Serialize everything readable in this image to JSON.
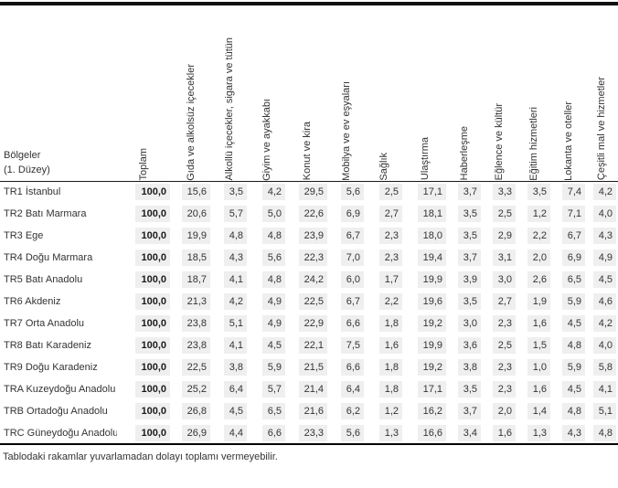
{
  "table": {
    "region_header": {
      "line1": "Bölgeler",
      "line2": "(1. Düzey)"
    },
    "columns": [
      "Toplam",
      "Gıda ve alkolsüz içecekler",
      "Alkollü içecekler, sigara ve tütün",
      "Giyim ve ayakkabı",
      "Konut ve kira",
      "Mobilya ve ev eşyaları",
      "Sağlık",
      "Ulaştırma",
      "Haberleşme",
      "Eğlence ve kültür",
      "Eğitim hizmetleri",
      "Lokanta ve oteller",
      "Çeşitli mal ve hizmetler"
    ],
    "rows": [
      {
        "region": "TR1 İstanbul",
        "total": "100,0",
        "values": [
          "15,6",
          "3,5",
          "4,2",
          "29,5",
          "5,6",
          "2,5",
          "17,1",
          "3,7",
          "3,3",
          "3,5",
          "7,4",
          "4,2"
        ]
      },
      {
        "region": "TR2 Batı Marmara",
        "total": "100,0",
        "values": [
          "20,6",
          "5,7",
          "5,0",
          "22,6",
          "6,9",
          "2,7",
          "18,1",
          "3,5",
          "2,5",
          "1,2",
          "7,1",
          "4,0"
        ]
      },
      {
        "region": "TR3 Ege",
        "total": "100,0",
        "values": [
          "19,9",
          "4,8",
          "4,8",
          "23,9",
          "6,7",
          "2,3",
          "18,0",
          "3,5",
          "2,9",
          "2,2",
          "6,7",
          "4,3"
        ]
      },
      {
        "region": "TR4 Doğu Marmara",
        "total": "100,0",
        "values": [
          "18,5",
          "4,3",
          "5,6",
          "22,3",
          "7,0",
          "2,3",
          "19,4",
          "3,7",
          "3,1",
          "2,0",
          "6,9",
          "4,9"
        ]
      },
      {
        "region": "TR5 Batı Anadolu",
        "total": "100,0",
        "values": [
          "18,7",
          "4,1",
          "4,8",
          "24,2",
          "6,0",
          "1,7",
          "19,9",
          "3,9",
          "3,0",
          "2,6",
          "6,5",
          "4,5"
        ]
      },
      {
        "region": "TR6 Akdeniz",
        "total": "100,0",
        "values": [
          "21,3",
          "4,2",
          "4,9",
          "22,5",
          "6,7",
          "2,2",
          "19,6",
          "3,5",
          "2,7",
          "1,9",
          "5,9",
          "4,6"
        ]
      },
      {
        "region": "TR7 Orta Anadolu",
        "total": "100,0",
        "values": [
          "23,8",
          "5,1",
          "4,9",
          "22,9",
          "6,6",
          "1,8",
          "19,2",
          "3,0",
          "2,3",
          "1,6",
          "4,5",
          "4,2"
        ]
      },
      {
        "region": "TR8 Batı Karadeniz",
        "total": "100,0",
        "values": [
          "23,8",
          "4,1",
          "4,5",
          "22,1",
          "7,5",
          "1,6",
          "19,9",
          "3,6",
          "2,5",
          "1,5",
          "4,8",
          "4,0"
        ]
      },
      {
        "region": "TR9 Doğu Karadeniz",
        "total": "100,0",
        "values": [
          "22,5",
          "3,8",
          "5,9",
          "21,5",
          "6,6",
          "1,8",
          "19,2",
          "3,8",
          "2,3",
          "1,0",
          "5,9",
          "5,8"
        ]
      },
      {
        "region": "TRA Kuzeydoğu Anadolu",
        "total": "100,0",
        "values": [
          "25,2",
          "6,4",
          "5,7",
          "21,4",
          "6,4",
          "1,8",
          "17,1",
          "3,5",
          "2,3",
          "1,6",
          "4,5",
          "4,1"
        ]
      },
      {
        "region": "TRB Ortadoğu Anadolu",
        "total": "100,0",
        "values": [
          "26,8",
          "4,5",
          "6,5",
          "21,6",
          "6,2",
          "1,2",
          "16,2",
          "3,7",
          "2,0",
          "1,4",
          "4,8",
          "5,1"
        ]
      },
      {
        "region": "TRC Güneydoğu Anadolu",
        "total": "100,0",
        "values": [
          "26,9",
          "4,4",
          "6,6",
          "23,3",
          "5,6",
          "1,3",
          "16,6",
          "3,4",
          "1,6",
          "1,3",
          "4,3",
          "4,8"
        ]
      }
    ]
  },
  "footer": {
    "note": "Tablodaki rakamlar yuvarlamadan dolayı toplamı vermeyebilir."
  }
}
